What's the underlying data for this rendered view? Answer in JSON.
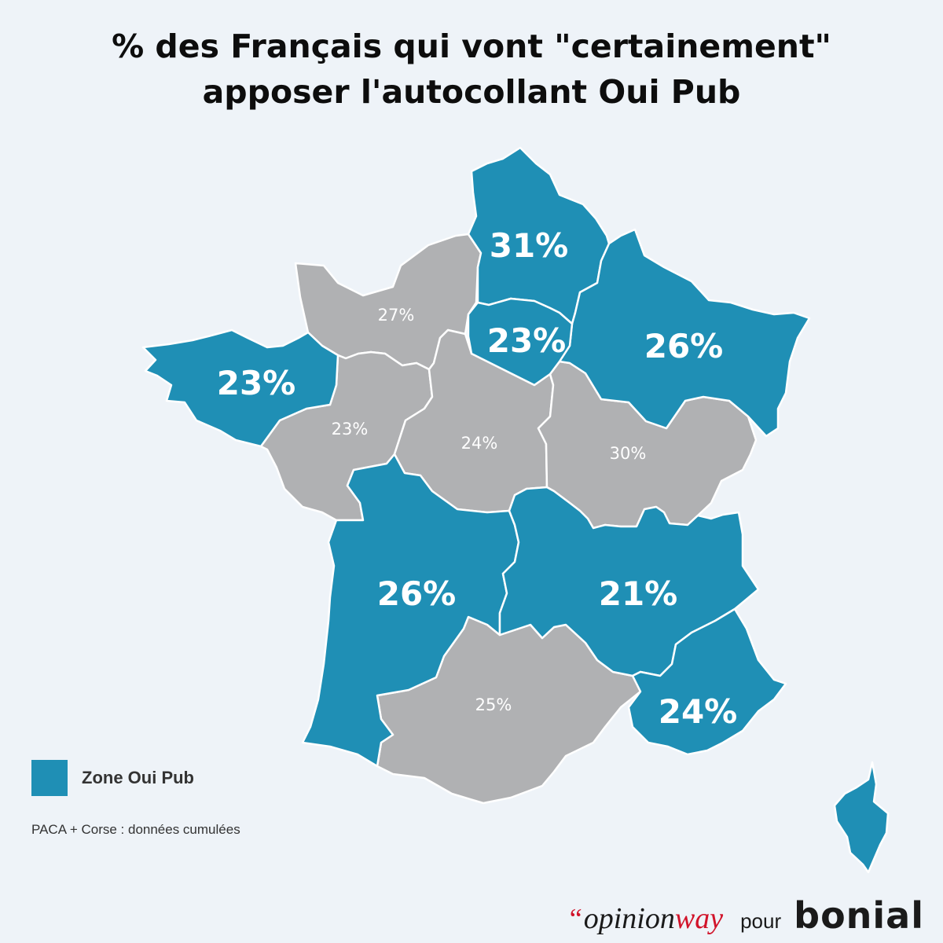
{
  "title": {
    "line1": "% des Français qui vont \"certainement\"",
    "line2": "apposer l'autocollant Oui Pub"
  },
  "colors": {
    "oui_pub_zone": "#1f8fb5",
    "other_zone": "#b0b1b3",
    "background": "#eef3f8",
    "opinionway_accent": "#d1132a"
  },
  "regions": [
    {
      "label": "31%",
      "zone": "oui_pub"
    },
    {
      "label": "23%",
      "zone": "oui_pub"
    },
    {
      "label": "26%",
      "zone": "oui_pub"
    },
    {
      "label": "23%",
      "zone": "oui_pub"
    },
    {
      "label": "26%",
      "zone": "oui_pub"
    },
    {
      "label": "21%",
      "zone": "oui_pub"
    },
    {
      "label": "24%",
      "zone": "oui_pub"
    },
    {
      "label": "27%",
      "zone": "other"
    },
    {
      "label": "23%",
      "zone": "other"
    },
    {
      "label": "24%",
      "zone": "other"
    },
    {
      "label": "30%",
      "zone": "other"
    },
    {
      "label": "25%",
      "zone": "other"
    }
  ],
  "legend": {
    "label": "Zone Oui Pub"
  },
  "note": "PACA + Corse : données cumulées",
  "credit": {
    "quote_mark": "“",
    "opinion": "opinion",
    "way": "way",
    "pour": "pour",
    "brand": "bonial"
  }
}
